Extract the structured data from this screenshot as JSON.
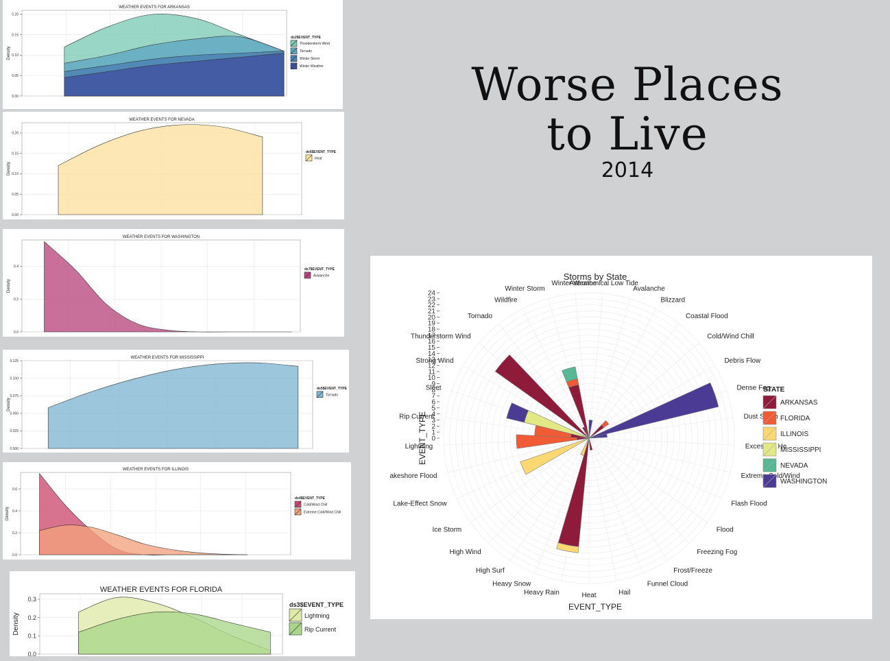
{
  "page": {
    "title_line1": "Worse Places",
    "title_line2": "to Live",
    "year": "2014"
  },
  "chart_data": [
    {
      "type": "area",
      "title": "WEATHER EVENTS FOR ARKANSAS",
      "ylabel": "Density",
      "legend_title": "ds2$EVENT_TYPE",
      "legend_position": "right",
      "ylim": [
        0,
        0.21
      ],
      "yticks": [
        "0.00",
        "0.05",
        "0.10",
        "0.15",
        "0.20"
      ],
      "series": [
        {
          "name": "Thunderstorm Wind",
          "color": "#7ecbb5",
          "values": [
            0.12,
            0.17,
            0.2,
            0.19,
            0.15,
            0.11
          ]
        },
        {
          "name": "Tornado",
          "color": "#5fa6c3",
          "values": [
            0.08,
            0.1,
            0.125,
            0.14,
            0.145,
            0.11
          ]
        },
        {
          "name": "Winter Storm",
          "color": "#4a7fb4",
          "values": [
            0.06,
            0.075,
            0.09,
            0.1,
            0.105,
            0.11
          ]
        },
        {
          "name": "Winter Weather",
          "color": "#3f4f9e",
          "values": [
            0.045,
            0.06,
            0.075,
            0.085,
            0.095,
            0.105
          ]
        }
      ]
    },
    {
      "type": "area",
      "title": "WEATHER EVENTS FOR NEVADA",
      "ylabel": "Density",
      "legend_title": "ds6$EVENT_TYPE",
      "legend_position": "right",
      "ylim": [
        0,
        0.225
      ],
      "yticks": [
        "0.00",
        "0.05",
        "0.10",
        "0.15",
        "0.20"
      ],
      "series": [
        {
          "name": "Heat",
          "color": "#fde2a0",
          "values": [
            0.12,
            0.17,
            0.205,
            0.22,
            0.215,
            0.19
          ]
        }
      ]
    },
    {
      "type": "area",
      "title": "WEATHER EVENTS FOR WASHINGTON",
      "ylabel": "Density",
      "legend_title": "ds7$EVENT_TYPE",
      "legend_position": "right",
      "ylim": [
        0,
        0.56
      ],
      "yticks": [
        "0.0",
        "0.2",
        "0.4"
      ],
      "series": [
        {
          "name": "Avalanche",
          "color": "#b9467e",
          "values": [
            0.55,
            0.38,
            0.17,
            0.05,
            0.01,
            0.0,
            0.0,
            0.0,
            0.0
          ]
        }
      ]
    },
    {
      "type": "area",
      "title": "WEATHER EVENTS FOR MISSISSIPPI",
      "ylabel": "Density",
      "legend_title": "ds5$EVENT_TYPE",
      "legend_position": "right",
      "ylim": [
        0,
        0.125
      ],
      "yticks": [
        "0.000",
        "0.025",
        "0.050",
        "0.075",
        "0.100",
        "0.125"
      ],
      "series": [
        {
          "name": "Tornado",
          "color": "#7fb6d1",
          "values": [
            0.058,
            0.08,
            0.098,
            0.112,
            0.12,
            0.122,
            0.117
          ]
        }
      ]
    },
    {
      "type": "area",
      "title": "WEATHER EVENTS FOR ILLINOIS",
      "ylabel": "Density",
      "legend_title": "ds4$EVENT_TYPE",
      "legend_position": "right",
      "ylim": [
        0,
        0.75
      ],
      "yticks": [
        "0.0",
        "0.2",
        "0.4",
        "0.6"
      ],
      "series": [
        {
          "name": "Cold/Wind Chill",
          "color": "#cc4c6e",
          "values": [
            0.74,
            0.45,
            0.22,
            0.05,
            0.0,
            0.0,
            0.0,
            0.0,
            0.0
          ]
        },
        {
          "name": "Extreme Cold/Wind Chill",
          "color": "#f4a27e",
          "values": [
            0.22,
            0.27,
            0.25,
            0.18,
            0.1,
            0.05,
            0.02,
            0.005,
            0.0
          ]
        }
      ]
    },
    {
      "type": "area",
      "title": "WEATHER EVENTS FOR FLORIDA",
      "ylabel": "Density",
      "legend_title": "ds3$EVENT_TYPE",
      "legend_position": "right",
      "ylim": [
        0,
        0.33
      ],
      "yticks": [
        "0.0",
        "0.1",
        "0.2",
        "0.3"
      ],
      "series": [
        {
          "name": "Lightning",
          "color": "#dfeaa9",
          "values": [
            0.23,
            0.31,
            0.28,
            0.2,
            0.1,
            0.02
          ]
        },
        {
          "name": "Rip Current",
          "color": "#a9d68a",
          "values": [
            0.12,
            0.19,
            0.23,
            0.22,
            0.17,
            0.12
          ]
        }
      ]
    },
    {
      "type": "bar",
      "subtype": "polar-stacked",
      "title": "Storms by State",
      "xlabel": "EVENT_TYPE",
      "ylabel": "EVENT_TYPE",
      "legend_title": "STATE",
      "legend_position": "right",
      "ylim": [
        0,
        24
      ],
      "yticks": [
        "24",
        "23",
        "22",
        "21",
        "20",
        "19",
        "18",
        "17",
        "16",
        "15",
        "14",
        "13",
        "12",
        "11",
        "10",
        "9",
        "8",
        "7",
        "6",
        "5",
        "4",
        "3",
        "2",
        "1",
        "0"
      ],
      "categories": [
        "Astronomical Low Tide",
        "Avalanche",
        "Blizzard",
        "Coastal Flood",
        "Cold/Wind Chill",
        "Debris Flow",
        "Dense Fog",
        "Dust Storm",
        "Excessive He",
        "Extreme Cold/Wind",
        "Flash Flood",
        "Flood",
        "Freezing Fog",
        "Frost/Freeze",
        "Funnel Cloud",
        "Hail",
        "Heat",
        "Heavy Rain",
        "Heavy Snow",
        "High Surf",
        "High Wind",
        "Ice Storm",
        "Lake-Effect Snow",
        "akeshore Flood",
        "Lightning",
        "Rip Current",
        "Sleet",
        "Strong Wind",
        "Thunderstorm Wind",
        "Tornado",
        "Wildfire",
        "Winter Storm",
        "Winter Weathe"
      ],
      "series": [
        {
          "name": "ARKANSAS",
          "color": "#8e1b3a",
          "values": [
            0,
            0,
            0,
            0,
            3,
            0,
            0,
            0,
            0,
            0,
            0,
            0,
            0,
            0,
            0,
            2,
            0,
            18,
            0,
            0,
            0,
            0,
            0,
            0,
            2,
            3,
            0,
            0,
            19,
            0,
            2,
            9,
            0
          ]
        },
        {
          "name": "FLORIDA",
          "color": "#f05a35",
          "values": [
            0,
            0,
            0,
            0,
            1,
            0,
            0,
            0,
            0,
            0,
            0,
            0,
            0,
            0,
            0,
            0,
            0,
            0,
            0,
            0,
            0,
            0,
            0,
            0,
            10,
            6,
            0,
            0,
            0,
            0,
            0,
            1,
            0
          ]
        },
        {
          "name": "ILLINOIS",
          "color": "#fcd873",
          "values": [
            0,
            0,
            0,
            0,
            0,
            0,
            0,
            0,
            0,
            0,
            0,
            0,
            0,
            0,
            0,
            0,
            0,
            1,
            3,
            0,
            0,
            0,
            12,
            0,
            0,
            0,
            1,
            0,
            0,
            0,
            0,
            0,
            0
          ]
        },
        {
          "name": "MISSISSIPPI",
          "color": "#e2e884",
          "values": [
            0,
            0,
            0,
            0,
            0,
            0,
            0,
            0,
            0,
            0,
            0,
            0,
            0,
            0,
            0,
            0,
            0,
            0,
            0,
            0,
            0,
            0,
            0,
            0,
            0,
            0,
            10,
            0,
            0,
            0,
            0,
            0,
            0
          ]
        },
        {
          "name": "NEVADA",
          "color": "#55b995",
          "values": [
            0,
            0,
            0,
            0,
            0,
            0,
            0,
            0,
            0,
            0,
            0,
            0,
            0,
            0,
            0,
            0,
            0,
            0,
            0,
            0,
            0,
            0,
            0,
            0,
            0,
            0,
            0,
            0,
            0,
            0,
            0,
            2,
            0
          ]
        },
        {
          "name": "WASHINGTON",
          "color": "#4b3b94",
          "values": [
            3,
            0,
            0,
            0,
            0,
            0,
            22,
            3,
            0,
            0,
            0,
            0,
            0,
            0,
            0,
            0,
            0,
            0,
            0,
            0,
            0,
            0,
            0,
            0,
            0,
            0,
            3,
            0,
            0,
            0,
            0,
            0,
            0
          ]
        }
      ]
    }
  ]
}
